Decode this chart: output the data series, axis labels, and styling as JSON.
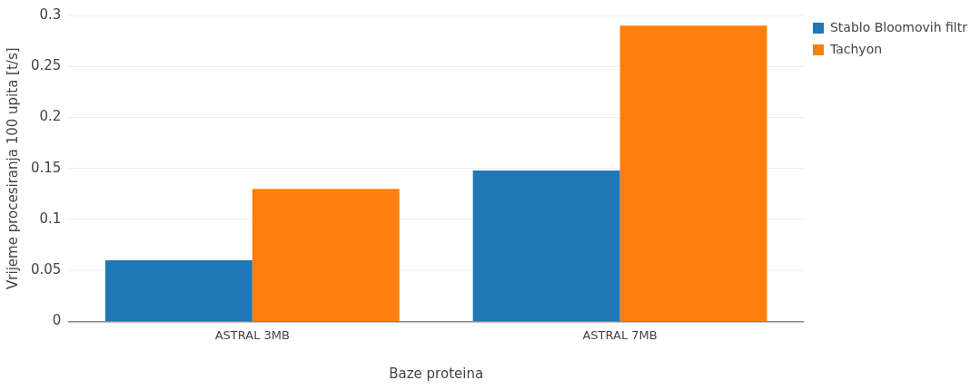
{
  "chart_data": {
    "type": "bar",
    "xlabel": "Baze proteina",
    "ylabel": "Vrijeme procesiranja 100 upita [t/s]",
    "categories": [
      "ASTRAL 3MB",
      "ASTRAL 7MB"
    ],
    "series": [
      {
        "name": "Stablo Bloomovih filtr",
        "color": "#1f77b4",
        "values": [
          0.06,
          0.148
        ]
      },
      {
        "name": "Tachyon",
        "color": "#ff7f0e",
        "values": [
          0.13,
          0.29
        ]
      }
    ],
    "ylim": [
      0,
      0.3
    ],
    "yticks": [
      0,
      0.05,
      0.1,
      0.15,
      0.2,
      0.25,
      0.3
    ],
    "grid": "y",
    "legend": "top right"
  }
}
